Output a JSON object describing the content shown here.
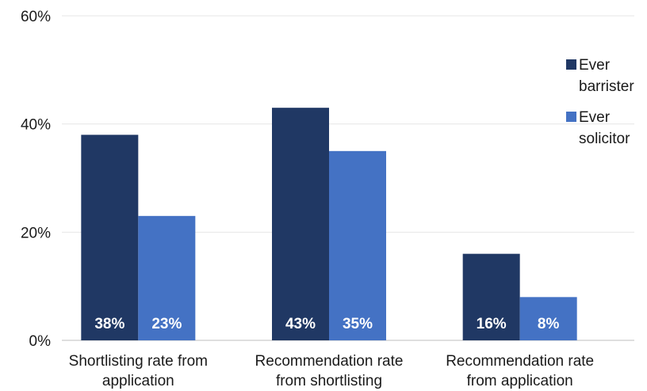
{
  "chart_data": {
    "type": "bar",
    "title": "",
    "xlabel": "",
    "ylabel": "",
    "categories": [
      [
        "Shortlisting rate from",
        "application"
      ],
      [
        "Recommendation rate",
        "from shortlisting"
      ],
      [
        "Recommendation rate",
        "from application"
      ]
    ],
    "series": [
      {
        "name": [
          "Ever",
          "barrister"
        ],
        "color": "#203864",
        "values": [
          38,
          43,
          16
        ],
        "labels": [
          "38%",
          "43%",
          "16%"
        ]
      },
      {
        "name": [
          "Ever",
          "solicitor"
        ],
        "color": "#4472C4",
        "values": [
          23,
          35,
          8
        ],
        "labels": [
          "23%",
          "35%",
          "8%"
        ]
      }
    ],
    "ylim": [
      0,
      60
    ],
    "yticks": [
      0,
      20,
      40,
      60
    ],
    "ytick_labels": [
      "0%",
      "20%",
      "40%",
      "60%"
    ],
    "grid": true,
    "legend_position": "right"
  }
}
